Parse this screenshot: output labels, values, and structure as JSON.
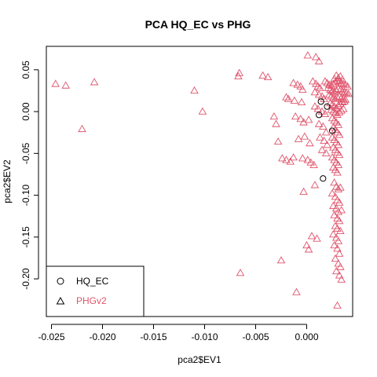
{
  "chart_data": {
    "type": "scatter",
    "title": "PCA HQ_EC vs PHG",
    "xlabel": "pca2$EV1",
    "ylabel": "pca2$EV2",
    "xlim": [
      -0.0255,
      0.0045
    ],
    "ylim": [
      -0.245,
      0.078
    ],
    "x_ticks": [
      -0.025,
      -0.02,
      -0.015,
      -0.01,
      -0.005,
      0.0
    ],
    "x_tick_labels": [
      "-0.025",
      "-0.020",
      "-0.015",
      "-0.010",
      "-0.005",
      "0.000"
    ],
    "y_ticks": [
      0.05,
      0.0,
      -0.05,
      -0.1,
      -0.15,
      -0.2
    ],
    "y_tick_labels": [
      "0.05",
      "0.00",
      "-0.05",
      "-0.10",
      "-0.15",
      "-0.20"
    ],
    "grid": false,
    "legend_position": "bottom-left",
    "legend": [
      {
        "label": "HQ_EC",
        "marker": "circle",
        "color": "#000000"
      },
      {
        "label": "PHGv2",
        "marker": "triangle",
        "color": "#DF536B"
      }
    ],
    "series": [
      {
        "name": "HQ_EC",
        "marker": "circle",
        "color": "#000000",
        "points": [
          [
            0.0014,
            0.012
          ],
          [
            0.002,
            0.006
          ],
          [
            0.0012,
            -0.004
          ],
          [
            0.0025,
            -0.023
          ],
          [
            0.0016,
            -0.08
          ]
        ]
      },
      {
        "name": "PHGv2",
        "marker": "triangle",
        "color": "#DF536B",
        "points": [
          [
            -0.0246,
            0.033
          ],
          [
            -0.0236,
            0.031
          ],
          [
            -0.0208,
            0.035
          ],
          [
            -0.022,
            -0.021
          ],
          [
            -0.011,
            0.025
          ],
          [
            -0.0102,
            0.0
          ],
          [
            -0.0066,
            0.046
          ],
          [
            -0.0067,
            0.042
          ],
          [
            -0.0065,
            -0.193
          ],
          [
            -0.0043,
            0.043
          ],
          [
            -0.0038,
            0.041
          ],
          [
            -0.0032,
            -0.006
          ],
          [
            -0.003,
            -0.015
          ],
          [
            -0.0028,
            -0.036
          ],
          [
            -0.0024,
            -0.056
          ],
          [
            -0.002,
            -0.058
          ],
          [
            -0.0016,
            -0.06
          ],
          [
            -0.0013,
            -0.055
          ],
          [
            -0.0025,
            -0.178
          ],
          [
            -0.001,
            -0.216
          ],
          [
            -0.0013,
            0.034
          ],
          [
            -0.0009,
            0.032
          ],
          [
            -0.0006,
            0.03
          ],
          [
            -0.0004,
            0.026
          ],
          [
            -0.002,
            0.017
          ],
          [
            -0.0018,
            0.015
          ],
          [
            -0.0012,
            0.013
          ],
          [
            -0.0005,
            0.011
          ],
          [
            -0.0011,
            -0.006
          ],
          [
            -0.0006,
            -0.009
          ],
          [
            -0.0003,
            -0.013
          ],
          [
            0.0002,
            -0.01
          ],
          [
            -0.0008,
            -0.033
          ],
          [
            -0.0002,
            -0.03
          ],
          [
            0.0003,
            -0.038
          ],
          [
            -0.0004,
            -0.056
          ],
          [
            0.0001,
            -0.058
          ],
          [
            0.0004,
            -0.061
          ],
          [
            0.0007,
            -0.064
          ],
          [
            -0.0003,
            -0.096
          ],
          [
            0.0008,
            -0.088
          ],
          [
            0.0,
            -0.16
          ],
          [
            0.0002,
            -0.165
          ],
          [
            0.0005,
            -0.149
          ],
          [
            0.001,
            -0.152
          ],
          [
            0.0001,
            0.067
          ],
          [
            0.0009,
            0.065
          ],
          [
            0.0012,
            0.06
          ],
          [
            0.0006,
            0.036
          ],
          [
            0.0009,
            0.033
          ],
          [
            0.0011,
            0.03
          ],
          [
            0.0013,
            0.028
          ],
          [
            0.0008,
            0.023
          ],
          [
            0.0012,
            0.02
          ],
          [
            0.0015,
            0.018
          ],
          [
            0.0017,
            0.015
          ],
          [
            0.0008,
            0.006
          ],
          [
            0.0011,
            0.003
          ],
          [
            0.0015,
            0.0
          ],
          [
            0.0018,
            -0.003
          ],
          [
            0.0012,
            -0.015
          ],
          [
            0.0016,
            -0.018
          ],
          [
            0.0019,
            -0.025
          ],
          [
            0.0013,
            -0.031
          ],
          [
            0.0017,
            -0.035
          ],
          [
            0.002,
            -0.04
          ],
          [
            0.0015,
            -0.046
          ],
          [
            0.0019,
            -0.05
          ],
          [
            0.0018,
            0.036
          ],
          [
            0.002,
            0.034
          ],
          [
            0.0022,
            0.032
          ],
          [
            0.0024,
            0.031
          ],
          [
            0.0026,
            0.033
          ],
          [
            0.0028,
            0.035
          ],
          [
            0.003,
            0.037
          ],
          [
            0.0032,
            0.036
          ],
          [
            0.0034,
            0.034
          ],
          [
            0.0036,
            0.033
          ],
          [
            0.0038,
            0.032
          ],
          [
            0.004,
            0.03
          ],
          [
            0.0021,
            0.028
          ],
          [
            0.0023,
            0.026
          ],
          [
            0.0025,
            0.024
          ],
          [
            0.0027,
            0.023
          ],
          [
            0.0029,
            0.025
          ],
          [
            0.0031,
            0.027
          ],
          [
            0.0033,
            0.026
          ],
          [
            0.0035,
            0.024
          ],
          [
            0.0037,
            0.023
          ],
          [
            0.0039,
            0.022
          ],
          [
            0.0041,
            0.021
          ],
          [
            0.0022,
            0.02
          ],
          [
            0.0024,
            0.018
          ],
          [
            0.0026,
            0.016
          ],
          [
            0.0028,
            0.015
          ],
          [
            0.003,
            0.017
          ],
          [
            0.0032,
            0.018
          ],
          [
            0.0034,
            0.016
          ],
          [
            0.0036,
            0.015
          ],
          [
            0.0038,
            0.014
          ],
          [
            0.0023,
            0.01
          ],
          [
            0.0025,
            0.008
          ],
          [
            0.0027,
            0.006
          ],
          [
            0.0029,
            0.004
          ],
          [
            0.0031,
            0.007
          ],
          [
            0.0033,
            0.009
          ],
          [
            0.0035,
            0.011
          ],
          [
            0.0037,
            0.012
          ],
          [
            0.0024,
            0.002
          ],
          [
            0.0026,
            0.0
          ],
          [
            0.0028,
            -0.002
          ],
          [
            0.003,
            -0.004
          ],
          [
            0.0032,
            -0.001
          ],
          [
            0.0034,
            0.001
          ],
          [
            0.0036,
            0.003
          ],
          [
            0.0031,
            0.04
          ],
          [
            0.0033,
            0.042
          ],
          [
            0.0035,
            0.038
          ],
          [
            0.0029,
            0.043
          ],
          [
            0.0027,
            0.039
          ],
          [
            0.0025,
            -0.008
          ],
          [
            0.0027,
            -0.011
          ],
          [
            0.0029,
            -0.013
          ],
          [
            0.0031,
            -0.016
          ],
          [
            0.0026,
            -0.019
          ],
          [
            0.0028,
            -0.022
          ],
          [
            0.003,
            -0.025
          ],
          [
            0.0032,
            -0.028
          ],
          [
            0.0025,
            -0.031
          ],
          [
            0.0027,
            -0.034
          ],
          [
            0.0029,
            -0.037
          ],
          [
            0.0031,
            -0.04
          ],
          [
            0.0026,
            -0.043
          ],
          [
            0.0028,
            -0.046
          ],
          [
            0.003,
            -0.049
          ],
          [
            0.0032,
            -0.052
          ],
          [
            0.0025,
            -0.055
          ],
          [
            0.0027,
            -0.058
          ],
          [
            0.0029,
            -0.061
          ],
          [
            0.0031,
            -0.064
          ],
          [
            0.0026,
            -0.067
          ],
          [
            0.0028,
            -0.07
          ],
          [
            0.003,
            -0.073
          ],
          [
            0.0027,
            -0.085
          ],
          [
            0.0029,
            -0.09
          ],
          [
            0.0031,
            -0.093
          ],
          [
            0.0033,
            -0.091
          ],
          [
            0.0025,
            -0.098
          ],
          [
            0.0028,
            -0.102
          ],
          [
            0.003,
            -0.106
          ],
          [
            0.0032,
            -0.109
          ],
          [
            0.0026,
            -0.113
          ],
          [
            0.0029,
            -0.116
          ],
          [
            0.0031,
            -0.12
          ],
          [
            0.0034,
            -0.118
          ],
          [
            0.0027,
            -0.124
          ],
          [
            0.003,
            -0.128
          ],
          [
            0.0032,
            -0.131
          ],
          [
            0.0028,
            -0.137
          ],
          [
            0.003,
            -0.14
          ],
          [
            0.0033,
            -0.143
          ],
          [
            0.0026,
            -0.147
          ],
          [
            0.0029,
            -0.151
          ],
          [
            0.0031,
            -0.155
          ],
          [
            0.0027,
            -0.16
          ],
          [
            0.003,
            -0.164
          ],
          [
            0.0032,
            -0.17
          ],
          [
            0.0028,
            -0.176
          ],
          [
            0.0031,
            -0.182
          ],
          [
            0.0033,
            -0.186
          ],
          [
            0.0029,
            -0.191
          ],
          [
            0.0032,
            -0.196
          ],
          [
            0.0034,
            -0.201
          ],
          [
            0.003,
            -0.232
          ]
        ]
      }
    ]
  }
}
